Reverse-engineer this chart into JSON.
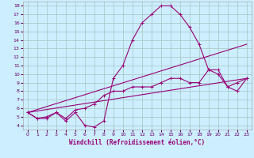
{
  "xlabel": "Windchill (Refroidissement éolien,°C)",
  "background_color": "#cceeff",
  "grid_color": "#aacccc",
  "line_color": "#990077",
  "spine_color": "#aaaaaa",
  "xlim": [
    -0.5,
    23.5
  ],
  "ylim": [
    3.5,
    18.5
  ],
  "xticks": [
    0,
    1,
    2,
    3,
    4,
    5,
    6,
    7,
    8,
    9,
    10,
    11,
    12,
    13,
    14,
    15,
    16,
    17,
    18,
    19,
    20,
    21,
    22,
    23
  ],
  "yticks": [
    4,
    5,
    6,
    7,
    8,
    9,
    10,
    11,
    12,
    13,
    14,
    15,
    16,
    17,
    18
  ],
  "curve1_x": [
    0,
    1,
    2,
    3,
    4,
    5,
    6,
    7,
    8,
    9,
    10,
    11,
    12,
    13,
    14,
    15,
    16,
    17,
    18,
    19,
    20,
    21,
    22,
    23
  ],
  "curve1_y": [
    5.5,
    4.8,
    4.8,
    5.5,
    4.5,
    5.5,
    4.0,
    3.8,
    4.5,
    9.5,
    11.0,
    14.0,
    16.0,
    17.0,
    18.0,
    18.0,
    17.0,
    15.5,
    13.5,
    10.5,
    10.0,
    8.5,
    8.0,
    9.5
  ],
  "curve2_x": [
    0,
    23
  ],
  "curve2_y": [
    5.5,
    13.5
  ],
  "curve3_x": [
    0,
    23
  ],
  "curve3_y": [
    5.5,
    9.5
  ],
  "curve4_x": [
    0,
    1,
    2,
    3,
    4,
    5,
    6,
    7,
    8,
    9,
    10,
    11,
    12,
    13,
    14,
    15,
    16,
    17,
    18,
    19,
    20,
    21,
    22,
    23
  ],
  "curve4_y": [
    5.5,
    4.8,
    5.0,
    5.5,
    4.8,
    5.8,
    6.0,
    6.5,
    7.5,
    8.0,
    8.0,
    8.5,
    8.5,
    8.5,
    9.0,
    9.5,
    9.5,
    9.0,
    9.0,
    10.5,
    10.5,
    8.5,
    9.0,
    9.5
  ],
  "marker": "+",
  "markersize": 3,
  "linewidth": 0.8,
  "tick_color": "#660066",
  "xlabel_fontsize": 5.5,
  "tick_fontsize": 4.5
}
